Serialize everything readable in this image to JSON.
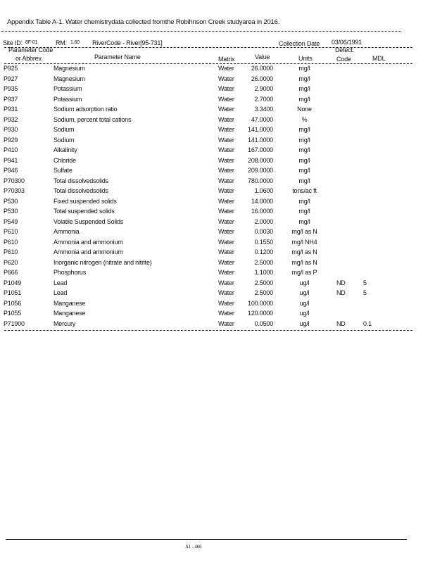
{
  "title": "Appendix Table A-1. Water chemistrydata collected fromthe Robihnson Creek studyarea in 2016.",
  "site": {
    "site_id_label": "Site ID:",
    "site_id": "8F-01",
    "rm_label": "RM:",
    "rm": "1.60",
    "river_code": "RiverCode - River[95-731]",
    "collection_date_label": "Collection Date",
    "collection_date": "03/06/1991"
  },
  "headers": {
    "code_1": "Parameter Code",
    "code_2": "or Abbrev.",
    "name": "Parameter Name",
    "matrix": "Matrix",
    "value": "Value",
    "units": "Units",
    "detect_1": "Detect.",
    "detect_2": "Code",
    "mdl": "MDL"
  },
  "rows": [
    [
      "P925",
      "Magnesium",
      "Water",
      "26.0000",
      "mg/l",
      "",
      ""
    ],
    [
      "P927",
      "Magnesium",
      "Water",
      "26.0000",
      "mg/l",
      "",
      ""
    ],
    [
      "P935",
      "Potassium",
      "Water",
      "2.9000",
      "mg/l",
      "",
      ""
    ],
    [
      "P937",
      "Potassium",
      "Water",
      "2.7000",
      "mg/l",
      "",
      ""
    ],
    [
      "P931",
      "Sodium adsorption ratio",
      "Water",
      "3.3400",
      "None",
      "",
      ""
    ],
    [
      "P932",
      "Sodium, percent total cations",
      "Water",
      "47.0000",
      "%",
      "",
      ""
    ],
    [
      "P930",
      "Sodium",
      "Water",
      "141.0000",
      "mg/l",
      "",
      ""
    ],
    [
      "P929",
      "Sodium",
      "Water",
      "141.0000",
      "mg/l",
      "",
      ""
    ],
    [
      "P410",
      "Alkalinity",
      "Water",
      "167.0000",
      "mg/l",
      "",
      ""
    ],
    [
      "P941",
      "Chloride",
      "Water",
      "208.0000",
      "mg/l",
      "",
      ""
    ],
    [
      "P946",
      "Sulfate",
      "Water",
      "209.0000",
      "mg/l",
      "",
      ""
    ],
    [
      "P70300",
      "Total dissolvedsolids",
      "Water",
      "780.0000",
      "mg/l",
      "",
      ""
    ],
    [
      "P70303",
      "Total dissolvedsolids",
      "Water",
      "1.0600",
      "tons/ac ft",
      "",
      ""
    ],
    [
      "P530",
      "Fixed suspended solids",
      "Water",
      "14.0000",
      "mg/l",
      "",
      ""
    ],
    [
      "P530",
      "Total suspended solids",
      "Water",
      "16.0000",
      "mg/l",
      "",
      ""
    ],
    [
      "P549",
      "Volatile Suspended Solids",
      "Water",
      "2.0000",
      "mg/l",
      "",
      ""
    ],
    [
      "P610",
      "Ammonia",
      "Water",
      "0.0030",
      "mg/l as N",
      "",
      ""
    ],
    [
      "P610",
      "Ammonia and ammonium",
      "Water",
      "0.1550",
      "mg/l NH4",
      "",
      ""
    ],
    [
      "P610",
      "Ammonia and ammonium",
      "Water",
      "0.1200",
      "mg/l as N",
      "",
      ""
    ],
    [
      "P620",
      "Inorganic nitrogen (nitrate and nitrite)",
      "Water",
      "2.5000",
      "mg/l as N",
      "",
      ""
    ],
    [
      "P666",
      "Phosphorus",
      "Water",
      "1.1000",
      "mg/l as P",
      "",
      ""
    ],
    [
      "P1049",
      "Lead",
      "Water",
      "2.5000",
      "ug/l",
      "ND",
      "5"
    ],
    [
      "P1051",
      "Lead",
      "Water",
      "2.5000",
      "ug/l",
      "ND",
      "5"
    ],
    [
      "P1056",
      "Manganese",
      "Water",
      "100.0000",
      "ug/l",
      "",
      ""
    ],
    [
      "P1055",
      "Manganese",
      "Water",
      "120.0000",
      "ug/l",
      "",
      ""
    ],
    [
      "P71900",
      "Mercury",
      "Water",
      "0.0500",
      "ug/l",
      "ND",
      "0.1"
    ]
  ],
  "footer": "A1 - 466"
}
